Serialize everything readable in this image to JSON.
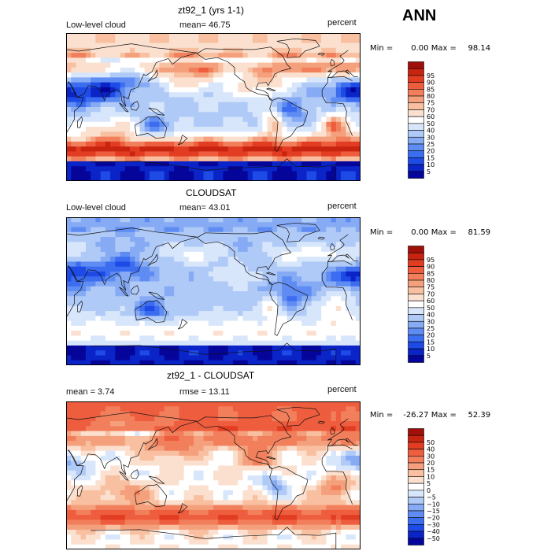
{
  "season": "ANN",
  "colorbars": {
    "abs": {
      "colors": [
        "#05059a",
        "#0a24c8",
        "#1e4be6",
        "#3c6cf0",
        "#5e8cf2",
        "#86abf4",
        "#b0caf7",
        "#d8e6fb",
        "#ffffff",
        "#fbe0cf",
        "#f8c0a0",
        "#f5a07c",
        "#f27f5c",
        "#ee5d3e",
        "#e23d22",
        "#c82410",
        "#a01008"
      ],
      "labels": [
        "5",
        "10",
        "15",
        "20",
        "25",
        "30",
        "40",
        "50",
        "60",
        "70",
        "75",
        "80",
        "85",
        "90",
        "95"
      ]
    },
    "diff": {
      "colors": [
        "#05059a",
        "#0a24c8",
        "#1e4be6",
        "#3c6cf0",
        "#5e8cf2",
        "#86abf4",
        "#b0caf7",
        "#d8e6fb",
        "#ffffff",
        "#fbe0cf",
        "#f8c0a0",
        "#f5a07c",
        "#f27f5c",
        "#ee5d3e",
        "#e23d22",
        "#c82410",
        "#a01008"
      ],
      "labels": [
        "−50",
        "−40",
        "−30",
        "−20",
        "−15",
        "−10",
        "−5",
        "0",
        "5",
        "10",
        "15",
        "20",
        "30",
        "40",
        "50"
      ]
    }
  },
  "panels": [
    {
      "title": "zt92_1 (yrs 1-1)",
      "left_label": "Low-level cloud",
      "mid_label": "mean=  46.75",
      "units": "percent",
      "min_label": "Min =",
      "min_value": "0.00",
      "max_label": "Max =",
      "max_value": "98.14",
      "scale": "abs",
      "field_style": "model"
    },
    {
      "title": "CLOUDSAT",
      "left_label": "Low-level cloud",
      "mid_label": "mean=  43.01",
      "units": "percent",
      "min_label": "Min =",
      "min_value": "0.00",
      "max_label": "Max =",
      "max_value": "81.59",
      "scale": "abs",
      "field_style": "obs"
    },
    {
      "title": "zt92_1 - CLOUDSAT",
      "left_label": "mean =    3.74",
      "mid_label": "rmse =  13.11",
      "units": "percent",
      "min_label": "Min =",
      "min_value": "-26.27",
      "max_label": "Max =",
      "max_value": "52.39",
      "scale": "diff",
      "field_style": "diff"
    }
  ]
}
